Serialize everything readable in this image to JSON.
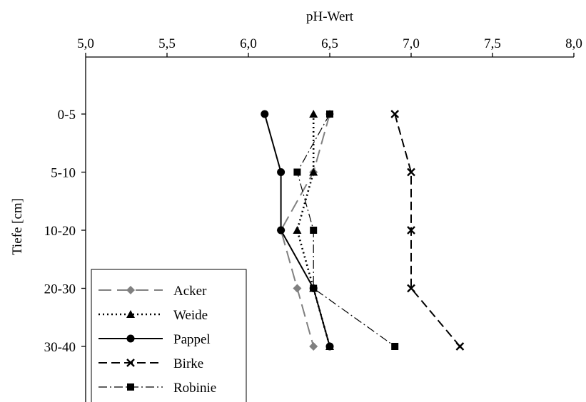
{
  "chart_data": {
    "type": "line",
    "orientation": "depth-profile",
    "title": "",
    "xlabel": "pH-Wert",
    "ylabel": "Tiefe [cm]",
    "xlim": [
      5.0,
      8.0
    ],
    "x_ticks": [
      "5,0",
      "5,5",
      "6,0",
      "6,5",
      "7,0",
      "7,5",
      "8,0"
    ],
    "categories": [
      "0-5",
      "5-10",
      "10-20",
      "20-30",
      "30-40"
    ],
    "x_axis_position": "top",
    "grid": false,
    "legend_position": "bottom-left",
    "series": [
      {
        "name": "Acker",
        "values": [
          6.5,
          6.4,
          6.2,
          6.3,
          6.4
        ],
        "color": "#808080",
        "marker": "diamond",
        "dash": "long-dash"
      },
      {
        "name": "Weide",
        "values": [
          6.4,
          6.4,
          6.3,
          6.4,
          6.5
        ],
        "color": "#000000",
        "marker": "triangle",
        "dash": "dotted"
      },
      {
        "name": "Pappel",
        "values": [
          6.1,
          6.2,
          6.2,
          6.4,
          6.5
        ],
        "color": "#000000",
        "marker": "circle",
        "dash": "solid"
      },
      {
        "name": "Birke",
        "values": [
          6.9,
          7.0,
          7.0,
          7.0,
          7.3
        ],
        "color": "#000000",
        "marker": "x",
        "dash": "dashed"
      },
      {
        "name": "Robinie",
        "values": [
          6.5,
          6.3,
          6.4,
          6.4,
          6.9
        ],
        "color": "#000000",
        "marker": "square",
        "dash": "dash-dot"
      }
    ]
  }
}
